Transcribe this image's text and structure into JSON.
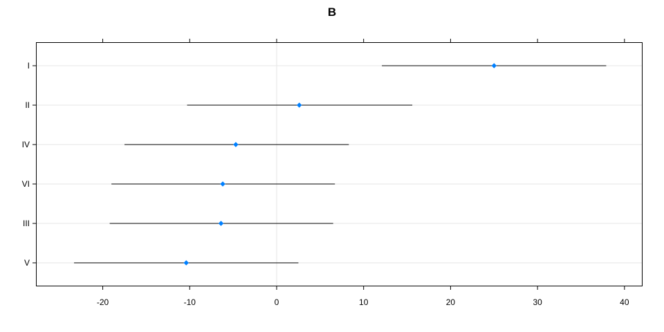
{
  "chart_data": {
    "type": "dotplot",
    "title": "B",
    "xlabel": "",
    "ylabel": "",
    "xlim": [
      -27.6,
      42.0
    ],
    "x_ticks": [
      -20,
      -10,
      0,
      10,
      20,
      30,
      40
    ],
    "x_tick_labels": [
      "-20",
      "-10",
      "0",
      "10",
      "20",
      "30",
      "40"
    ],
    "grid": true,
    "categories": [
      "I",
      "II",
      "IV",
      "VI",
      "III",
      "V"
    ],
    "estimates": [
      25.0,
      2.6,
      -4.7,
      -6.2,
      -6.4,
      -10.4
    ],
    "lower": [
      12.1,
      -10.3,
      -17.5,
      -19.0,
      -19.2,
      -23.3
    ],
    "upper": [
      37.9,
      15.6,
      8.3,
      6.7,
      6.5,
      2.5
    ],
    "point_color": "#0080ff",
    "interval_color": "#000000"
  }
}
